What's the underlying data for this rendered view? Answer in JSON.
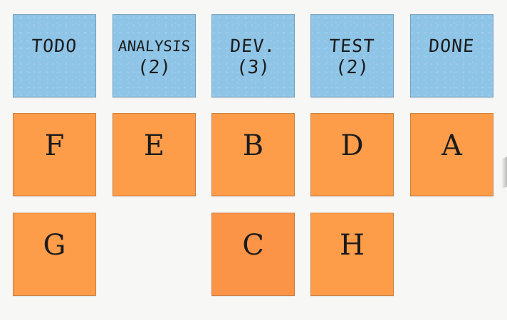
{
  "board": {
    "columns": [
      {
        "id": "todo",
        "title": "TODO",
        "count": ""
      },
      {
        "id": "analysis",
        "title": "ANALYSIS",
        "count": "(2)"
      },
      {
        "id": "dev",
        "title": "DEV.",
        "count": "(3)"
      },
      {
        "id": "test",
        "title": "TEST",
        "count": "(2)"
      },
      {
        "id": "done",
        "title": "DONE",
        "count": ""
      }
    ],
    "cards": [
      {
        "column": "todo",
        "label": "F"
      },
      {
        "column": "todo",
        "label": "G"
      },
      {
        "column": "analysis",
        "label": "E"
      },
      {
        "column": "dev",
        "label": "B"
      },
      {
        "column": "dev",
        "label": "C"
      },
      {
        "column": "test",
        "label": "D"
      },
      {
        "column": "test",
        "label": "H"
      },
      {
        "column": "done",
        "label": "A"
      }
    ],
    "colors": {
      "header_note": "#8ec4e6",
      "card_note": "#fd9d4a",
      "background": "#f7f7f6"
    }
  }
}
